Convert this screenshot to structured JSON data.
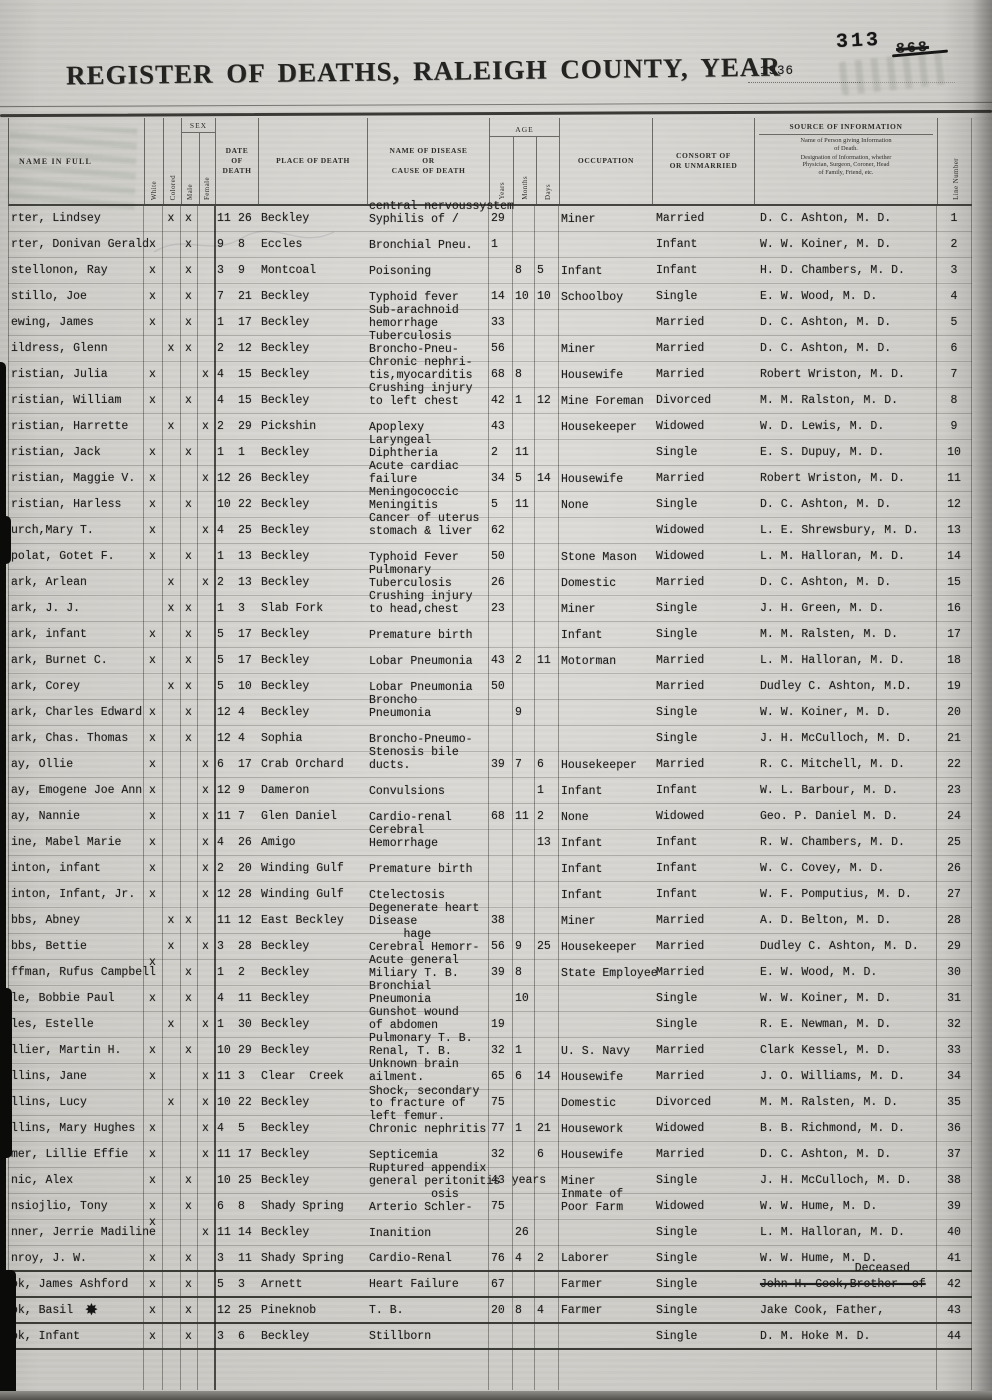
{
  "page": {
    "title": "REGISTER OF DEATHS, RALEIGH COUNTY, YEAR",
    "year": "1936",
    "stamp_number": "313",
    "struck_number": "868"
  },
  "table": {
    "headers": {
      "name": "NAME IN FULL",
      "white": "White",
      "colored": "Colored",
      "sex": "SEX",
      "male": "Male",
      "female": "Female",
      "date": "DATE\nOF\nDEATH",
      "place": "PLACE OF DEATH",
      "disease": "NAME OF DISEASE\nOR\nCAUSE OF DEATH",
      "age": "AGE",
      "years": "Years",
      "months": "Months",
      "days": "Days",
      "occupation": "OCCUPATION",
      "consort": "CONSORT OF\nOR UNMARRIED",
      "source": "SOURCE OF INFORMATION",
      "source_sub1": "Name of Person giving Information\nof Death.",
      "source_sub2": "Designation of Information, whether\nPhysician, Surgeon, Coroner, Head\nof Family, Friend, etc.",
      "line": "Line Number"
    },
    "rows": [
      {
        "ln": "1",
        "n": "rter, Lindsey",
        "w": "",
        "c": "x",
        "m": "x",
        "f": "",
        "dm": "11",
        "dd": "26",
        "pl": "Beckley",
        "ca": "central nervoussystem\nSyphilis of /",
        "y": "29",
        "mo": "",
        "dy": "",
        "oc": "Miner",
        "co": "Married",
        "so": "D. C. Ashton, M. D."
      },
      {
        "ln": "2",
        "n": "rter, Donivan Gerald",
        "w": "x",
        "c": "",
        "m": "x",
        "f": "",
        "dm": "9",
        "dd": "8",
        "pl": "Eccles",
        "ca": "Bronchial Pneu.",
        "y": "1",
        "mo": "",
        "dy": "",
        "oc": "",
        "co": "Infant",
        "so": "W. W. Koiner, M. D."
      },
      {
        "ln": "3",
        "n": "stellonon, Ray",
        "w": "x",
        "c": "",
        "m": "x",
        "f": "",
        "dm": "3",
        "dd": "9",
        "pl": "Montcoal",
        "ca": "Poisoning",
        "y": "",
        "mo": "8",
        "dy": "5",
        "oc": "Infant",
        "co": "Infant",
        "so": "H. D. Chambers, M. D."
      },
      {
        "ln": "4",
        "n": "stillo, Joe",
        "w": "x",
        "c": "",
        "m": "x",
        "f": "",
        "dm": "7",
        "dd": "21",
        "pl": "Beckley",
        "ca": "Typhoid fever",
        "y": "14",
        "mo": "10",
        "dy": "10",
        "oc": "Schoolboy",
        "co": "Single",
        "so": "E. W. Wood, M. D."
      },
      {
        "ln": "5",
        "n": "ewing, James",
        "w": "x",
        "c": "",
        "m": "x",
        "f": "",
        "dm": "1",
        "dd": "17",
        "pl": "Beckley",
        "ca": "Sub-arachnoid\nhemorrhage",
        "y": "33",
        "mo": "",
        "dy": "",
        "oc": "",
        "co": "Married",
        "so": "D. C. Ashton, M. D."
      },
      {
        "ln": "6",
        "n": "ildress, Glenn",
        "w": "",
        "c": "x",
        "m": "x",
        "f": "",
        "dm": "2",
        "dd": "12",
        "pl": "Beckley",
        "ca": "Tuberculosis\nBroncho-Pneu-",
        "y": "56",
        "mo": "",
        "dy": "",
        "oc": "Miner",
        "co": "Married",
        "so": "D. C. Ashton, M. D."
      },
      {
        "ln": "7",
        "n": "ristian, Julia",
        "w": "x",
        "c": "",
        "m": "",
        "f": "x",
        "dm": "4",
        "dd": "15",
        "pl": "Beckley",
        "ca": "Chronic nephri-\ntis,myocarditis",
        "y": "68",
        "mo": "8",
        "dy": "",
        "oc": "Housewife",
        "co": "Married",
        "so": "Robert Wriston, M. D."
      },
      {
        "ln": "8",
        "n": "ristian, William",
        "w": "x",
        "c": "",
        "m": "x",
        "f": "",
        "dm": "4",
        "dd": "15",
        "pl": "Beckley",
        "ca": "Crushing injury\nto left chest",
        "y": "42",
        "mo": "1",
        "dy": "12",
        "oc": "Mine Foreman",
        "co": "Divorced",
        "so": "M. M. Ralston, M. D."
      },
      {
        "ln": "9",
        "n": "ristian, Harrette",
        "w": "",
        "c": "x",
        "m": "",
        "f": "x",
        "dm": "2",
        "dd": "29",
        "pl": "Pickshin",
        "ca": "Apoplexy",
        "y": "43",
        "mo": "",
        "dy": "",
        "oc": "Housekeeper",
        "co": "Widowed",
        "so": "W. D. Lewis, M. D."
      },
      {
        "ln": "10",
        "n": "ristian, Jack",
        "w": "x",
        "c": "",
        "m": "x",
        "f": "",
        "dm": "1",
        "dd": "1",
        "pl": "Beckley",
        "ca": "Laryngeal\nDiphtheria",
        "y": "2",
        "mo": "11",
        "dy": "",
        "oc": "",
        "co": "Single",
        "so": "E. S. Dupuy, M. D."
      },
      {
        "ln": "11",
        "n": "ristian, Maggie V.",
        "w": "x",
        "c": "",
        "m": "",
        "f": "x",
        "dm": "12",
        "dd": "26",
        "pl": "Beckley",
        "ca": "Acute cardiac\nfailure",
        "y": "34",
        "mo": "5",
        "dy": "14",
        "oc": "Housewife",
        "co": "Married",
        "so": "Robert Wriston, M. D."
      },
      {
        "ln": "12",
        "n": "ristian, Harless",
        "w": "x",
        "c": "",
        "m": "x",
        "f": "",
        "dm": "10",
        "dd": "22",
        "pl": "Beckley",
        "ca": "Meningococcic\nMeningitis",
        "y": "5",
        "mo": "11",
        "dy": "",
        "oc": "None",
        "co": "Single",
        "so": "D. C. Ashton, M. D."
      },
      {
        "ln": "13",
        "n": "urch,Mary T.",
        "w": "x",
        "c": "",
        "m": "",
        "f": "x",
        "dm": "4",
        "dd": "25",
        "pl": "Beckley",
        "ca": "Cancer of uterus\nstomach & liver",
        "y": "62",
        "mo": "",
        "dy": "",
        "oc": "",
        "co": "Widowed",
        "so": "L. E. Shrewsbury, M. D."
      },
      {
        "ln": "14",
        "n": "polat, Gotet F.",
        "w": "x",
        "c": "",
        "m": "x",
        "f": "",
        "dm": "1",
        "dd": "13",
        "pl": "Beckley",
        "ca": "Typhoid Fever",
        "y": "50",
        "mo": "",
        "dy": "",
        "oc": "Stone Mason",
        "co": "Widowed",
        "so": "L. M. Halloran, M. D."
      },
      {
        "ln": "15",
        "n": "ark, Arlean",
        "w": "",
        "c": "x",
        "m": "",
        "f": "x",
        "dm": "2",
        "dd": "13",
        "pl": "Beckley",
        "ca": "Pulmonary\nTuberculosis",
        "y": "26",
        "mo": "",
        "dy": "",
        "oc": "Domestic",
        "co": "Married",
        "so": "D. C. Ashton, M. D."
      },
      {
        "ln": "16",
        "n": "ark, J. J.",
        "w": "",
        "c": "x",
        "m": "x",
        "f": "",
        "dm": "1",
        "dd": "3",
        "pl": "Slab Fork",
        "ca": "Crushing injury\nto head,chest",
        "y": "23",
        "mo": "",
        "dy": "",
        "oc": "Miner",
        "co": "Single",
        "so": "J. H. Green, M. D."
      },
      {
        "ln": "17",
        "n": "ark, infant",
        "w": "x",
        "c": "",
        "m": "x",
        "f": "",
        "dm": "5",
        "dd": "17",
        "pl": "Beckley",
        "ca": "Premature birth",
        "y": "",
        "mo": "",
        "dy": "",
        "oc": "Infant",
        "co": "Single",
        "so": "M. M. Ralsten, M. D."
      },
      {
        "ln": "18",
        "n": "ark, Burnet C.",
        "w": "x",
        "c": "",
        "m": "x",
        "f": "",
        "dm": "5",
        "dd": "17",
        "pl": "Beckley",
        "ca": "Lobar Pneumonia",
        "y": "43",
        "mo": "2",
        "dy": "11",
        "oc": "Motorman",
        "co": "Married",
        "so": "L. M. Halloran, M. D."
      },
      {
        "ln": "19",
        "n": "ark, Corey",
        "w": "",
        "c": "x",
        "m": "x",
        "f": "",
        "dm": "5",
        "dd": "10",
        "pl": "Beckley",
        "ca": "Lobar Pneumonia",
        "y": "50",
        "mo": "",
        "dy": "",
        "oc": "",
        "co": "Married",
        "so": "Dudley C. Ashton, M.D."
      },
      {
        "ln": "20",
        "n": "ark, Charles Edward",
        "w": "x",
        "c": "",
        "m": "x",
        "f": "",
        "dm": "12",
        "dd": "4",
        "pl": "Beckley",
        "ca": "Broncho\nPneumonia",
        "y": "",
        "mo": "9",
        "dy": "",
        "oc": "",
        "co": "Single",
        "so": "W. W. Koiner, M. D."
      },
      {
        "ln": "21",
        "n": "ark, Chas. Thomas",
        "w": "x",
        "c": "",
        "m": "x",
        "f": "",
        "dm": "12",
        "dd": "4",
        "pl": "Sophia",
        "ca": "Broncho-Pneumo-",
        "y": "",
        "mo": "",
        "dy": "",
        "oc": "",
        "co": "Single",
        "so": "J. H. McCulloch, M. D."
      },
      {
        "ln": "22",
        "n": "ay, Ollie",
        "w": "x",
        "c": "",
        "m": "",
        "f": "x",
        "dm": "6",
        "dd": "17",
        "pl": "Crab Orchard",
        "ca": "Stenosis bile\nducts.",
        "y": "39",
        "mo": "7",
        "dy": "6",
        "oc": "Housekeeper",
        "co": "Married",
        "so": "R. C. Mitchell, M. D."
      },
      {
        "ln": "23",
        "n": "ay, Emogene Joe Ann",
        "w": "x",
        "c": "",
        "m": "",
        "f": "x",
        "dm": "12",
        "dd": "9",
        "pl": "Dameron",
        "ca": "Convulsions",
        "y": "",
        "mo": "",
        "dy": "1",
        "oc": "Infant",
        "co": "Infant",
        "so": "W. L. Barbour, M. D."
      },
      {
        "ln": "24",
        "n": "ay, Nannie",
        "w": "x",
        "c": "",
        "m": "",
        "f": "x",
        "dm": "11",
        "dd": "7",
        "pl": "Glen Daniel",
        "ca": "Cardio-renal",
        "y": "68",
        "mo": "11",
        "dy": "2",
        "oc": "None",
        "co": "Widowed",
        "so": "Geo. P. Daniel M. D."
      },
      {
        "ln": "25",
        "n": "ine, Mabel Marie",
        "w": "x",
        "c": "",
        "m": "",
        "f": "x",
        "dm": "4",
        "dd": "26",
        "pl": "Amigo",
        "ca": "Cerebral\nHemorrhage",
        "y": "",
        "mo": "",
        "dy": "13",
        "oc": "Infant",
        "co": "Infant",
        "so": "R. W. Chambers, M. D."
      },
      {
        "ln": "26",
        "n": "inton, infant",
        "w": "x",
        "c": "",
        "m": "",
        "f": "x",
        "dm": "2",
        "dd": "20",
        "pl": "Winding Gulf",
        "ca": "Premature birth",
        "y": "",
        "mo": "",
        "dy": "",
        "oc": "Infant",
        "co": "Infant",
        "so": "W. C. Covey, M. D."
      },
      {
        "ln": "27",
        "n": "inton, Infant, Jr.",
        "w": "x",
        "c": "",
        "m": "",
        "f": "x",
        "dm": "12",
        "dd": "28",
        "pl": "Winding Gulf",
        "ca": "Ctelectosis",
        "y": "",
        "mo": "",
        "dy": "",
        "oc": "Infant",
        "co": "Infant",
        "so": "W. F. Pomputius, M. D."
      },
      {
        "ln": "28",
        "n": "bbs, Abney",
        "w": "",
        "c": "x",
        "m": "x",
        "f": "",
        "dm": "11",
        "dd": "12",
        "pl": "East Beckley",
        "ca": "Degenerate heart\nDisease",
        "y": "38",
        "mo": "",
        "dy": "",
        "oc": "Miner",
        "co": "Married",
        "so": "A. D. Belton, M. D."
      },
      {
        "ln": "29",
        "n": "bbs, Bettie",
        "w": "",
        "c": "x",
        "m": "",
        "f": "x",
        "dm": "3",
        "dd": "28",
        "pl": "Beckley",
        "ca": "     hage\nCerebral Hemorr-",
        "y": "56",
        "mo": "9",
        "dy": "25",
        "oc": "Housekeeper",
        "co": "Married",
        "so": "Dudley C. Ashton, M. D."
      },
      {
        "ln": "30",
        "n": "ffman, Rufus Campbell",
        "w": "x",
        "up": true,
        "c": "",
        "m": "x",
        "f": "",
        "dm": "1",
        "dd": "2",
        "pl": "Beckley",
        "ca": "Acute general\nMiliary T. B.",
        "y": "39",
        "mo": "8",
        "dy": "",
        "oc": "State Employee",
        "co": "Married",
        "so": "E. W. Wood, M. D."
      },
      {
        "ln": "31",
        "n": "le, Bobbie Paul",
        "w": "x",
        "c": "",
        "m": "x",
        "f": "",
        "dm": "4",
        "dd": "11",
        "pl": "Beckley",
        "ca": "Bronchial\nPneumonia",
        "y": "",
        "mo": "10",
        "dy": "",
        "oc": "",
        "co": "Single",
        "so": "W. W. Koiner, M. D."
      },
      {
        "ln": "32",
        "n": "les, Estelle",
        "w": "",
        "c": "x",
        "m": "",
        "f": "x",
        "dm": "1",
        "dd": "30",
        "pl": "Beckley",
        "ca": "Gunshot wound\nof abdomen",
        "y": "19",
        "mo": "",
        "dy": "",
        "oc": "",
        "co": "Single",
        "so": "R. E. Newman, M. D."
      },
      {
        "ln": "33",
        "n": "llier, Martin H.",
        "w": "x",
        "c": "",
        "m": "x",
        "f": "",
        "dm": "10",
        "dd": "29",
        "pl": "Beckley",
        "ca": "Pulmonary T. B.\nRenal, T. B.",
        "y": "32",
        "mo": "1",
        "dy": "",
        "oc": "U. S. Navy",
        "co": "Married",
        "so": "Clark Kessel, M. D."
      },
      {
        "ln": "34",
        "n": "llins, Jane",
        "w": "x",
        "c": "",
        "m": "",
        "f": "x",
        "dm": "11",
        "dd": "3",
        "pl": "Clear  Creek",
        "ca": "Unknown brain\nailment.",
        "y": "65",
        "mo": "6",
        "dy": "14",
        "oc": "Housewife",
        "co": "Married",
        "so": "J. O. Williams, M. D."
      },
      {
        "ln": "35",
        "n": "llins, Lucy",
        "w": "",
        "c": "x",
        "m": "",
        "f": "x",
        "dm": "10",
        "dd": "22",
        "pl": "Beckley",
        "ca": "Shock, secondary\nto fracture of\nleft femur.",
        "y": "75",
        "mo": "",
        "dy": "",
        "oc": "Domestic",
        "co": "Divorced",
        "so": "M. M. Ralsten, M. D."
      },
      {
        "ln": "36",
        "n": "llins, Mary Hughes",
        "w": "x",
        "c": "",
        "m": "",
        "f": "x",
        "dm": "4",
        "dd": "5",
        "pl": "Beckley",
        "ca": "Chronic nephritis",
        "y": "77",
        "mo": "1",
        "dy": "21",
        "oc": "Housework",
        "co": "Widowed",
        "so": "B. B. Richmond, M. D."
      },
      {
        "ln": "37",
        "n": "mer, Lillie Effie",
        "w": "x",
        "c": "",
        "m": "",
        "f": "x",
        "dm": "11",
        "dd": "17",
        "pl": "Beckley",
        "ca": "Septicemia",
        "y": "32",
        "mo": "",
        "dy": "6",
        "oc": "Housewife",
        "co": "Married",
        "so": "D. C. Ashton, M. D."
      },
      {
        "ln": "38",
        "n": "nic, Alex",
        "w": "x",
        "c": "",
        "m": "x",
        "f": "",
        "dm": "10",
        "dd": "25",
        "pl": "Beckley",
        "ca": "Ruptured appendix\ngeneral peritonitis",
        "y": "43 years",
        "mo": "",
        "dy": "",
        "oc": "Miner",
        "co": "Single",
        "so": "J. H. McCulloch, M. D."
      },
      {
        "ln": "39",
        "n": "nsiojlio, Tony",
        "w": "x",
        "c": "",
        "m": "x",
        "f": "",
        "dm": "6",
        "dd": "8",
        "pl": "Shady Spring",
        "ca": "         osis\nArterio Schler-",
        "y": "75",
        "mo": "",
        "dy": "",
        "oc": "Inmate of\nPoor Farm",
        "co": "Widowed",
        "so": "W. W. Hume, M. D."
      },
      {
        "ln": "40",
        "n": "nner, Jerrie Madiline",
        "w": "x",
        "up": true,
        "c": "",
        "m": "",
        "f": "x",
        "dm": "11",
        "dd": "14",
        "pl": "Beckley",
        "ca": "Inanition",
        "y": "",
        "mo": "26",
        "dy": "",
        "oc": "",
        "co": "Single",
        "so": "L. M. Halloran, M. D."
      },
      {
        "ln": "41",
        "n": "nroy, J. W.",
        "w": "x",
        "c": "",
        "m": "x",
        "f": "",
        "dm": "3",
        "dd": "11",
        "pl": "Shady Spring",
        "ca": "Cardio-Renal",
        "y": "76",
        "mo": "4",
        "dy": "2",
        "oc": "Laborer",
        "co": "Single",
        "so": "W. W. Hume, M. D."
      },
      {
        "ln": "42",
        "n": "ok, James Ashford",
        "w": "x",
        "c": "",
        "m": "x",
        "f": "",
        "dm": "5",
        "dd": "3",
        "pl": "Arnett",
        "ca": "Heart Failure",
        "y": "67",
        "mo": "",
        "dy": "",
        "oc": "Farmer",
        "co": "Single",
        "so": "John H. Cook,Brother  of",
        "struck": true,
        "note": "Deceased"
      },
      {
        "ln": "43",
        "n": "ok, Basil",
        "mark": "✸",
        "w": "x",
        "c": "",
        "m": "x",
        "f": "",
        "dm": "12",
        "dd": "25",
        "pl": "Pineknob",
        "ca": "T. B.",
        "y": "20",
        "mo": "8",
        "dy": "4",
        "oc": "Farmer",
        "co": "Single",
        "so": "Jake Cook, Father,"
      },
      {
        "ln": "44",
        "n": "ok, Infant",
        "w": "x",
        "c": "",
        "m": "x",
        "f": "",
        "dm": "3",
        "dd": "6",
        "pl": "Beckley",
        "ca": "Stillborn",
        "y": "",
        "mo": "",
        "dy": "",
        "oc": "",
        "co": "Single",
        "so": "D. M. Hoke M. D."
      }
    ]
  }
}
